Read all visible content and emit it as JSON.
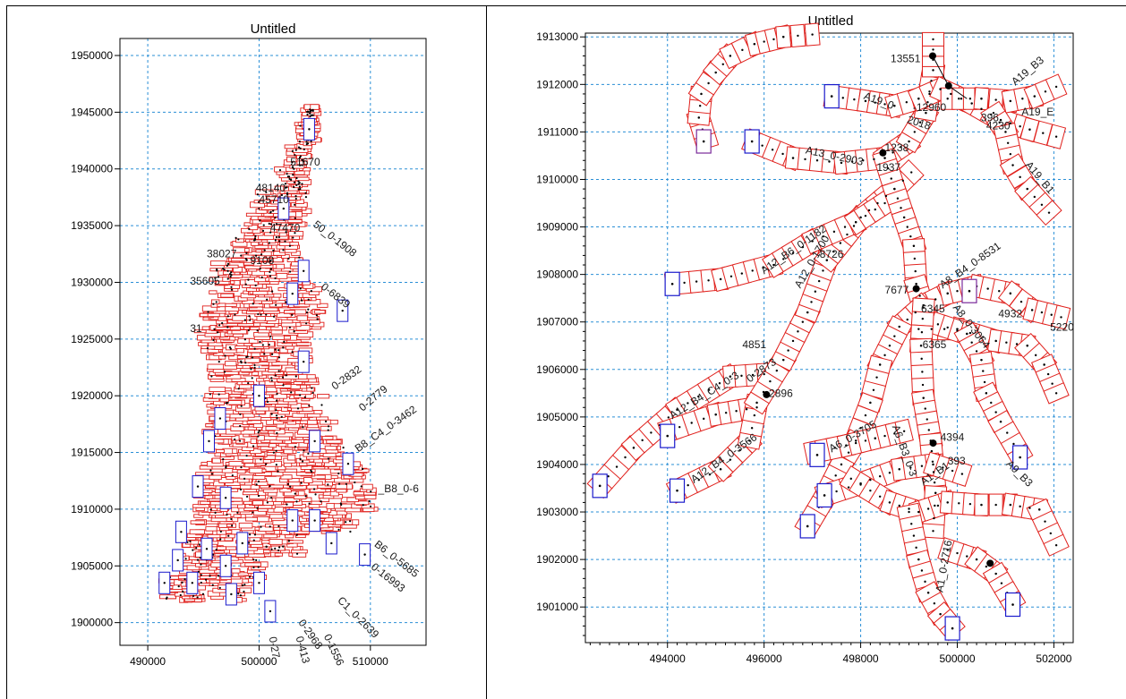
{
  "charts_title": "Untitled",
  "chart_data": [
    {
      "type": "scatter",
      "title": "Untitled",
      "xlabel": "",
      "ylabel": "",
      "xlim": [
        487500,
        515000
      ],
      "ylim": [
        1898000,
        1951500
      ],
      "xticks": [
        490000,
        500000,
        510000
      ],
      "yticks": [
        1900000,
        1905000,
        1910000,
        1915000,
        1920000,
        1925000,
        1930000,
        1935000,
        1940000,
        1945000,
        1950000
      ],
      "xtick_labels": [
        "490000",
        "500000",
        "510000"
      ],
      "ytick_labels": [
        "1900000",
        "1905000",
        "1910000",
        "1915000",
        "1920000",
        "1925000",
        "1930000",
        "1935000",
        "1940000",
        "1945000",
        "1950000"
      ],
      "grid": true,
      "axis_color": "#000000",
      "grid_color": "#2a8fd6",
      "box_colors": {
        "section": "#e0201c",
        "structure": "#1a1acc"
      },
      "labels": [
        {
          "text": "51670",
          "x": 502800,
          "y": 1940300,
          "rotate": 0
        },
        {
          "text": "48140",
          "x": 499700,
          "y": 1938000,
          "rotate": 0
        },
        {
          "text": "45710",
          "x": 500000,
          "y": 1937000,
          "rotate": 0
        },
        {
          "text": "47470",
          "x": 501000,
          "y": 1934500,
          "rotate": 0
        },
        {
          "text": "38027",
          "x": 495300,
          "y": 1932200,
          "rotate": 0
        },
        {
          "text": "9108",
          "x": 499200,
          "y": 1931600,
          "rotate": 0
        },
        {
          "text": "35605",
          "x": 493800,
          "y": 1929800,
          "rotate": 0
        },
        {
          "text": "31",
          "x": 493800,
          "y": 1925600,
          "rotate": 0
        },
        {
          "text": "50_0-1908",
          "x": 504800,
          "y": 1935000,
          "rotate": 38
        },
        {
          "text": "0-6839",
          "x": 505500,
          "y": 1929500,
          "rotate": 38
        },
        {
          "text": "0-2832",
          "x": 506800,
          "y": 1920500,
          "rotate": -35
        },
        {
          "text": "0-2779",
          "x": 509300,
          "y": 1918600,
          "rotate": -40
        },
        {
          "text": "B8_C4_0-3462",
          "x": 508900,
          "y": 1915000,
          "rotate": -35
        },
        {
          "text": "_B8_0-6",
          "x": 510700,
          "y": 1911500,
          "rotate": 0
        },
        {
          "text": "B6_0-5685",
          "x": 510300,
          "y": 1906800,
          "rotate": 38
        },
        {
          "text": "0-16993",
          "x": 510000,
          "y": 1904800,
          "rotate": 38
        },
        {
          "text": "C1_0-2639",
          "x": 507000,
          "y": 1901900,
          "rotate": 45
        },
        {
          "text": "0-2968",
          "x": 503500,
          "y": 1900000,
          "rotate": 55
        },
        {
          "text": "0-1556",
          "x": 505800,
          "y": 1898800,
          "rotate": 65
        },
        {
          "text": "0-413",
          "x": 503300,
          "y": 1898700,
          "rotate": 75
        },
        {
          "text": "0-27",
          "x": 500900,
          "y": 1898700,
          "rotate": 80
        }
      ]
    },
    {
      "type": "scatter",
      "title": "Untitled",
      "xlabel": "",
      "ylabel": "",
      "xlim": [
        492300,
        502400
      ],
      "ylim": [
        1900250,
        1913080
      ],
      "xticks": [
        494000,
        496000,
        498000,
        500000,
        502000
      ],
      "yticks": [
        1901000,
        1902000,
        1903000,
        1904000,
        1905000,
        1906000,
        1907000,
        1908000,
        1909000,
        1910000,
        1911000,
        1912000,
        1913000
      ],
      "xtick_labels": [
        "494000",
        "496000",
        "498000",
        "500000",
        "502000"
      ],
      "ytick_labels": [
        "1901000",
        "1902000",
        "1903000",
        "1904000",
        "1905000",
        "1906000",
        "1907000",
        "1908000",
        "1909000",
        "1910000",
        "1911000",
        "1912000",
        "1913000"
      ],
      "grid": true,
      "axis_color": "#000000",
      "grid_color": "#2a8fd6",
      "box_colors": {
        "section": "#e0201c",
        "structure": "#1a1acc",
        "structure_alt": "#7a2a9a"
      },
      "nodes": [
        {
          "label": "13551",
          "x": 499490,
          "y": 1912600
        },
        {
          "label": "2960",
          "x": 499820,
          "y": 1911970
        },
        {
          "label": "1238",
          "x": 498460,
          "y": 1910560
        },
        {
          "label": "7677",
          "x": 499150,
          "y": 1907700
        },
        {
          "label": "2896",
          "x": 496050,
          "y": 1905470
        },
        {
          "label": "4394",
          "x": 499500,
          "y": 1904450
        },
        {
          "label": "",
          "x": 500680,
          "y": 1901920
        }
      ],
      "labels": [
        {
          "text": "13551",
          "x": 498620,
          "y": 1912470,
          "rotate": 0
        },
        {
          "text": "-12960",
          "x": 499080,
          "y": 1911440,
          "rotate": 0
        },
        {
          "text": "A19_B3",
          "x": 501200,
          "y": 1911970,
          "rotate": -40
        },
        {
          "text": "A19_E",
          "x": 501330,
          "y": 1911350,
          "rotate": 0
        },
        {
          "text": "396",
          "x": 500490,
          "y": 1911220,
          "rotate": 0
        },
        {
          "text": "4230",
          "x": 500600,
          "y": 1911050,
          "rotate": 0
        },
        {
          "text": "A19_B1",
          "x": 501400,
          "y": 1910300,
          "rotate": 50
        },
        {
          "text": "A13_0-2903",
          "x": 496850,
          "y": 1910550,
          "rotate": 12
        },
        {
          "text": "1238",
          "x": 498500,
          "y": 1910590,
          "rotate": 0
        },
        {
          "text": "1937",
          "x": 498330,
          "y": 1910180,
          "rotate": 0
        },
        {
          "text": "2018",
          "x": 498950,
          "y": 1911200,
          "rotate": 18
        },
        {
          "text": "A19_0",
          "x": 498050,
          "y": 1911700,
          "rotate": 20
        },
        {
          "text": "A12_B6_0-1182",
          "x": 496000,
          "y": 1908000,
          "rotate": -35
        },
        {
          "text": "8726",
          "x": 497150,
          "y": 1908350,
          "rotate": 0
        },
        {
          "text": "A12_0-1700",
          "x": 496750,
          "y": 1907700,
          "rotate": -60
        },
        {
          "text": "A8_B4_0-8531",
          "x": 499700,
          "y": 1907700,
          "rotate": -35
        },
        {
          "text": "7677",
          "x": 498500,
          "y": 1907600,
          "rotate": 0
        },
        {
          "text": "6345",
          "x": 499250,
          "y": 1907200,
          "rotate": 0
        },
        {
          "text": "A8_0-3064",
          "x": 499900,
          "y": 1907300,
          "rotate": 52
        },
        {
          "text": "4932",
          "x": 500850,
          "y": 1907100,
          "rotate": 0
        },
        {
          "text": "5220",
          "x": 501920,
          "y": 1906820,
          "rotate": 0
        },
        {
          "text": "6365",
          "x": 499280,
          "y": 1906450,
          "rotate": 0
        },
        {
          "text": "4851",
          "x": 495550,
          "y": 1906450,
          "rotate": 0
        },
        {
          "text": "0-2873",
          "x": 495700,
          "y": 1905720,
          "rotate": -35
        },
        {
          "text": "2896",
          "x": 496100,
          "y": 1905420,
          "rotate": 0
        },
        {
          "text": "A12_B4_C4_0-3",
          "x": 494100,
          "y": 1904950,
          "rotate": -32
        },
        {
          "text": "4394",
          "x": 499650,
          "y": 1904500,
          "rotate": 0
        },
        {
          "text": "A6_0-3705",
          "x": 497400,
          "y": 1904250,
          "rotate": -30
        },
        {
          "text": "A6_B3_0-3",
          "x": 498650,
          "y": 1904800,
          "rotate": 70
        },
        {
          "text": "A12_B4_0-3566",
          "x": 494550,
          "y": 1903600,
          "rotate": -35
        },
        {
          "text": "A1_B1",
          "x": 499300,
          "y": 1903550,
          "rotate": -35
        },
        {
          "text": "393",
          "x": 499800,
          "y": 1904000,
          "rotate": 0
        },
        {
          "text": "A9_B3",
          "x": 501000,
          "y": 1904000,
          "rotate": 45
        },
        {
          "text": "A1_0-2716",
          "x": 499700,
          "y": 1901300,
          "rotate": -80
        }
      ],
      "networks": [
        [
          [
            492600,
            1903550
          ],
          [
            493300,
            1904350
          ],
          [
            494200,
            1905150
          ],
          [
            495300,
            1905850
          ],
          [
            496000,
            1905900
          ]
        ],
        [
          [
            494000,
            1904700
          ],
          [
            495000,
            1905050
          ],
          [
            495850,
            1905200
          ]
        ],
        [
          [
            494200,
            1903450
          ],
          [
            495100,
            1903900
          ],
          [
            495700,
            1904500
          ],
          [
            495850,
            1905300
          ],
          [
            496400,
            1906200
          ],
          [
            496900,
            1907200
          ],
          [
            497300,
            1908300
          ],
          [
            498000,
            1909200
          ],
          [
            498700,
            1909800
          ],
          [
            499050,
            1910150
          ]
        ],
        [
          [
            494100,
            1907800
          ],
          [
            495100,
            1907900
          ],
          [
            496200,
            1908200
          ],
          [
            497000,
            1908700
          ],
          [
            497900,
            1909100
          ],
          [
            498500,
            1909500
          ]
        ],
        [
          [
            495750,
            1910800
          ],
          [
            496600,
            1910450
          ],
          [
            497600,
            1910350
          ],
          [
            498500,
            1910450
          ],
          [
            499000,
            1910800
          ],
          [
            499350,
            1911400
          ],
          [
            499500,
            1912300
          ],
          [
            499500,
            1912950
          ]
        ],
        [
          [
            494800,
            1910800
          ],
          [
            494650,
            1911300
          ],
          [
            494700,
            1911800
          ],
          [
            495000,
            1912250
          ],
          [
            495300,
            1912600
          ],
          [
            495800,
            1912850
          ],
          [
            496400,
            1913000
          ],
          [
            497000,
            1913050
          ]
        ],
        [
          [
            497400,
            1911750
          ],
          [
            498100,
            1911650
          ],
          [
            498700,
            1911550
          ],
          [
            499200,
            1911700
          ],
          [
            499650,
            1911900
          ],
          [
            500300,
            1911600
          ],
          [
            500900,
            1911250
          ],
          [
            501500,
            1911050
          ],
          [
            502050,
            1910900
          ]
        ],
        [
          [
            499800,
            1911700
          ],
          [
            500500,
            1911700
          ],
          [
            501100,
            1911650
          ],
          [
            501600,
            1911750
          ],
          [
            502050,
            1911950
          ]
        ],
        [
          [
            500750,
            1911400
          ],
          [
            501000,
            1911000
          ],
          [
            501150,
            1910300
          ],
          [
            501450,
            1909800
          ],
          [
            501900,
            1909300
          ]
        ],
        [
          [
            498500,
            1910450
          ],
          [
            498700,
            1909800
          ],
          [
            498900,
            1909200
          ],
          [
            499100,
            1908600
          ],
          [
            499150,
            1907800
          ],
          [
            499300,
            1907300
          ]
        ],
        [
          [
            499300,
            1907350
          ],
          [
            499800,
            1907600
          ],
          [
            500400,
            1907750
          ],
          [
            501100,
            1907600
          ],
          [
            501550,
            1907250
          ],
          [
            502150,
            1907100
          ]
        ],
        [
          [
            499200,
            1906850
          ],
          [
            500000,
            1906850
          ],
          [
            500800,
            1906600
          ],
          [
            501450,
            1906500
          ],
          [
            501800,
            1906100
          ],
          [
            502050,
            1905500
          ]
        ],
        [
          [
            499600,
            1906950
          ],
          [
            500200,
            1906750
          ],
          [
            500500,
            1906200
          ],
          [
            500600,
            1905500
          ],
          [
            500900,
            1904900
          ],
          [
            501300,
            1904200
          ]
        ],
        [
          [
            499300,
            1907350
          ],
          [
            498800,
            1906900
          ],
          [
            498400,
            1906100
          ],
          [
            498200,
            1905300
          ],
          [
            497900,
            1904500
          ],
          [
            497600,
            1904000
          ],
          [
            497250,
            1903300
          ],
          [
            496900,
            1902700
          ]
        ],
        [
          [
            499300,
            1907350
          ],
          [
            499250,
            1906500
          ],
          [
            499300,
            1905400
          ],
          [
            499450,
            1904500
          ],
          [
            499550,
            1903400
          ],
          [
            499500,
            1902600
          ]
        ],
        [
          [
            497250,
            1903350
          ],
          [
            498000,
            1903600
          ],
          [
            498800,
            1903900
          ],
          [
            499500,
            1904000
          ],
          [
            500100,
            1903800
          ]
        ],
        [
          [
            497800,
            1903700
          ],
          [
            498600,
            1903200
          ],
          [
            499200,
            1903000
          ],
          [
            499800,
            1903200
          ],
          [
            500500,
            1903150
          ],
          [
            501100,
            1903150
          ],
          [
            501700,
            1903050
          ],
          [
            502050,
            1902300
          ]
        ],
        [
          [
            499000,
            1903000
          ],
          [
            499200,
            1902000
          ],
          [
            499400,
            1901300
          ],
          [
            499650,
            1900850
          ],
          [
            499900,
            1900550
          ]
        ],
        [
          [
            499800,
            1902200
          ],
          [
            500400,
            1902000
          ],
          [
            500800,
            1901700
          ],
          [
            501150,
            1901100
          ]
        ],
        [
          [
            497000,
            1904250
          ],
          [
            497700,
            1904400
          ],
          [
            498300,
            1904550
          ],
          [
            498900,
            1904700
          ]
        ]
      ],
      "structures": [
        {
          "x": 492600,
          "y": 1903550,
          "color": "structure"
        },
        {
          "x": 494000,
          "y": 1904600,
          "color": "structure"
        },
        {
          "x": 494200,
          "y": 1903450,
          "color": "structure"
        },
        {
          "x": 494100,
          "y": 1907800,
          "color": "structure"
        },
        {
          "x": 494750,
          "y": 1910800,
          "color": "structure_alt"
        },
        {
          "x": 495750,
          "y": 1910800,
          "color": "structure"
        },
        {
          "x": 497400,
          "y": 1911750,
          "color": "structure"
        },
        {
          "x": 497100,
          "y": 1904200,
          "color": "structure"
        },
        {
          "x": 497250,
          "y": 1903350,
          "color": "structure"
        },
        {
          "x": 496900,
          "y": 1902700,
          "color": "structure"
        },
        {
          "x": 500250,
          "y": 1907650,
          "color": "structure_alt"
        },
        {
          "x": 501300,
          "y": 1904150,
          "color": "structure"
        },
        {
          "x": 501150,
          "y": 1901050,
          "color": "structure"
        },
        {
          "x": 499900,
          "y": 1900550,
          "color": "structure"
        }
      ]
    }
  ]
}
